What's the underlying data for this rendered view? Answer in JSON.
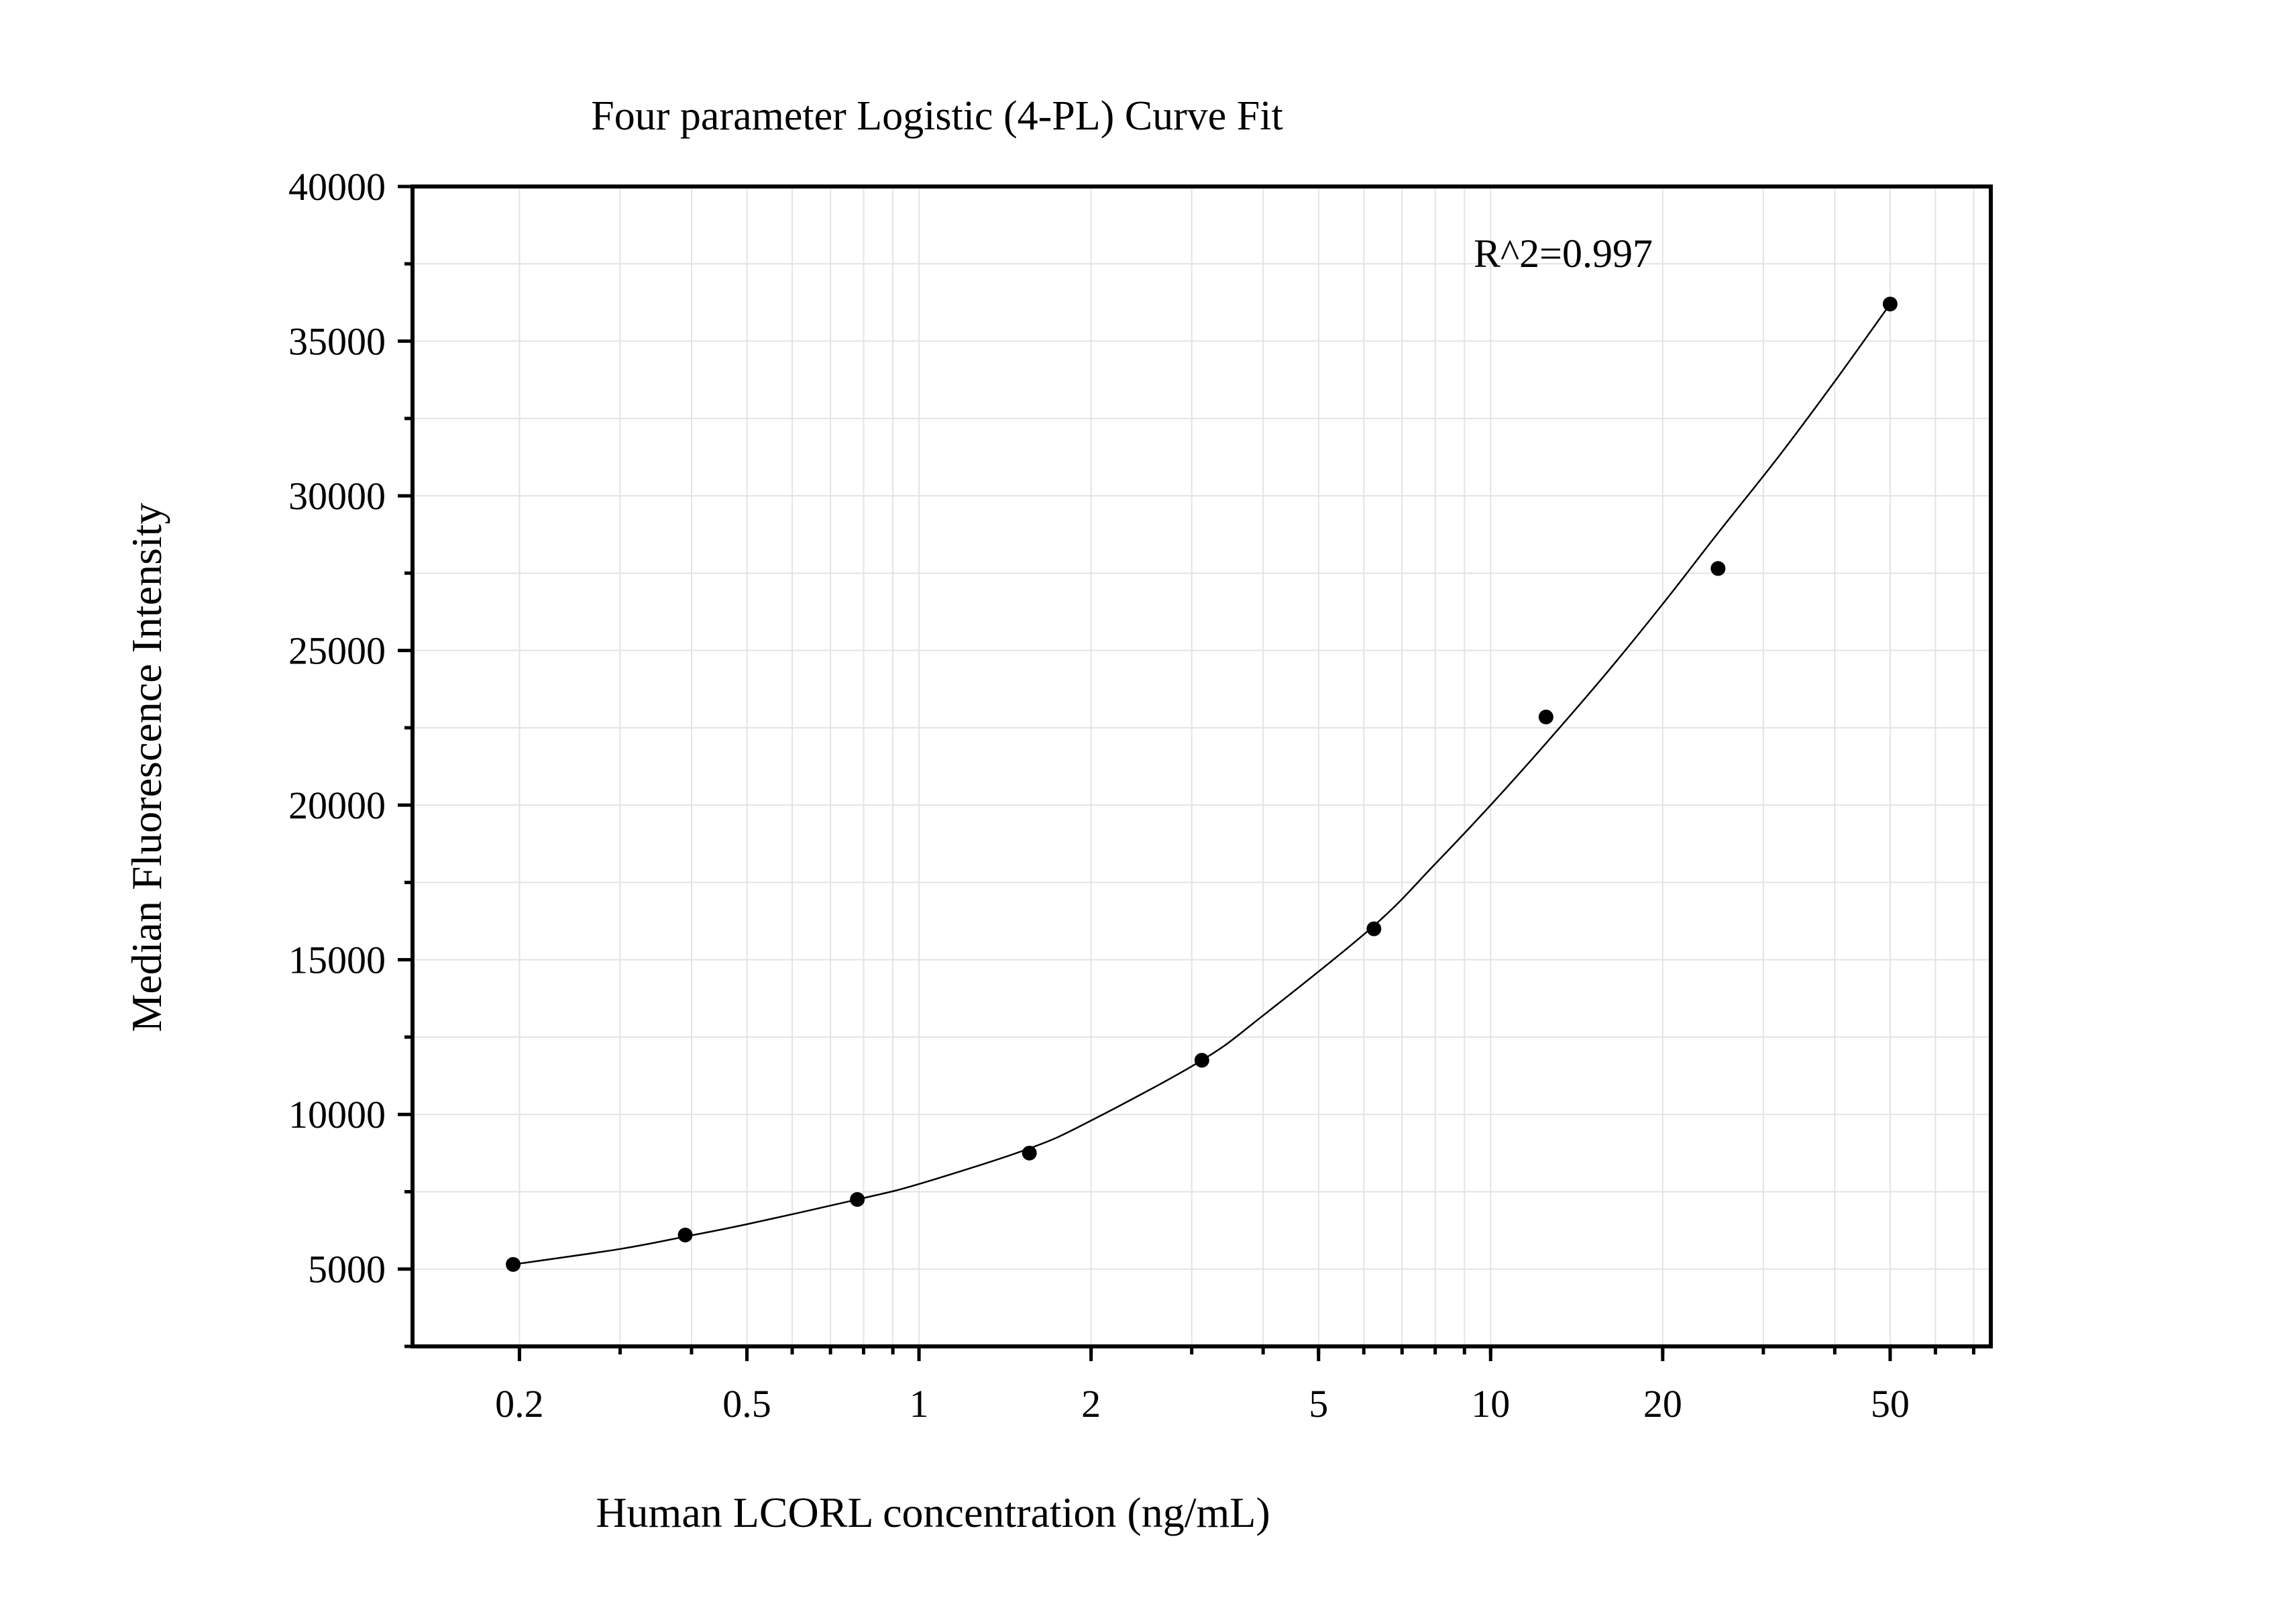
{
  "chart_data": {
    "type": "scatter",
    "title": "Four parameter Logistic (4-PL) Curve Fit",
    "xlabel": "Human LCORL concentration (ng/mL)",
    "ylabel": "Median Fluorescence Intensity",
    "x_scale": "log",
    "xlim": [
      0.13,
      75
    ],
    "ylim": [
      2500,
      40000
    ],
    "x_ticks": [
      0.2,
      0.5,
      1,
      2,
      5,
      10,
      20,
      50
    ],
    "x_tick_labels": [
      "0.2",
      "0.5",
      "1",
      "2",
      "5",
      "10",
      "20",
      "50"
    ],
    "y_ticks": [
      5000,
      10000,
      15000,
      20000,
      25000,
      30000,
      35000,
      40000
    ],
    "y_tick_labels": [
      "5000",
      "10000",
      "15000",
      "20000",
      "25000",
      "30000",
      "35000",
      "40000"
    ],
    "grid": true,
    "annotation": "R^2=0.997",
    "points": {
      "x": [
        0.195,
        0.39,
        0.78,
        1.56,
        3.125,
        6.25,
        12.5,
        25,
        50
      ],
      "y": [
        5150,
        6100,
        7250,
        8750,
        11750,
        16000,
        22850,
        27650,
        36200
      ]
    },
    "fit_curve": {
      "x": [
        0.195,
        0.3,
        0.39,
        0.5,
        0.78,
        1,
        1.56,
        2,
        3.125,
        4,
        6.25,
        8,
        10,
        12.5,
        16,
        20,
        25,
        32,
        40,
        50
      ],
      "y": [
        5150,
        5650,
        6050,
        6450,
        7250,
        7750,
        8900,
        9800,
        11750,
        13200,
        16100,
        18100,
        20000,
        22000,
        24300,
        26500,
        28800,
        31300,
        33700,
        36200
      ]
    }
  }
}
